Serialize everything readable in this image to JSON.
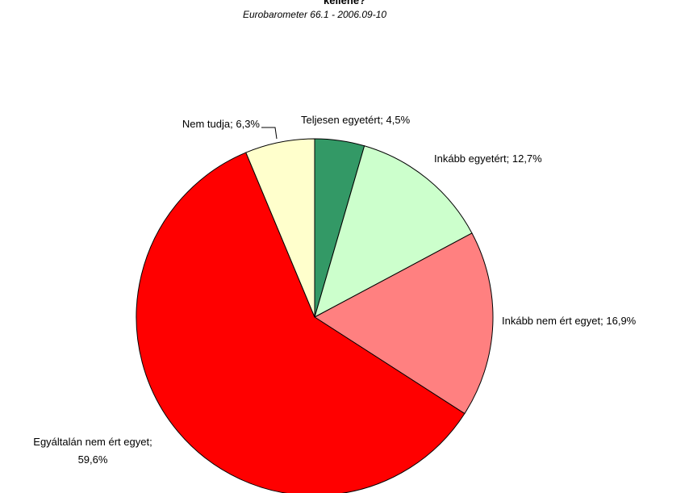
{
  "chart_data": {
    "type": "pie",
    "title": "kellene?",
    "subtitle": "Eurobarometer 66.1 - 2006.09-10",
    "categories": [
      "Teljesen egyetért",
      "Inkább egyetért",
      "Inkább nem ért egyet",
      "Egyáltalán nem ért egyet",
      "Nem tudja"
    ],
    "values": [
      4.5,
      12.7,
      16.9,
      59.6,
      6.3
    ],
    "value_labels": [
      "4,5%",
      "12,7%",
      "16,9%",
      "59,6%",
      "6,3%"
    ],
    "colors": [
      "#339966",
      "#ccffcc",
      "#ff8080",
      "#ff0000",
      "#ffffcc"
    ]
  }
}
